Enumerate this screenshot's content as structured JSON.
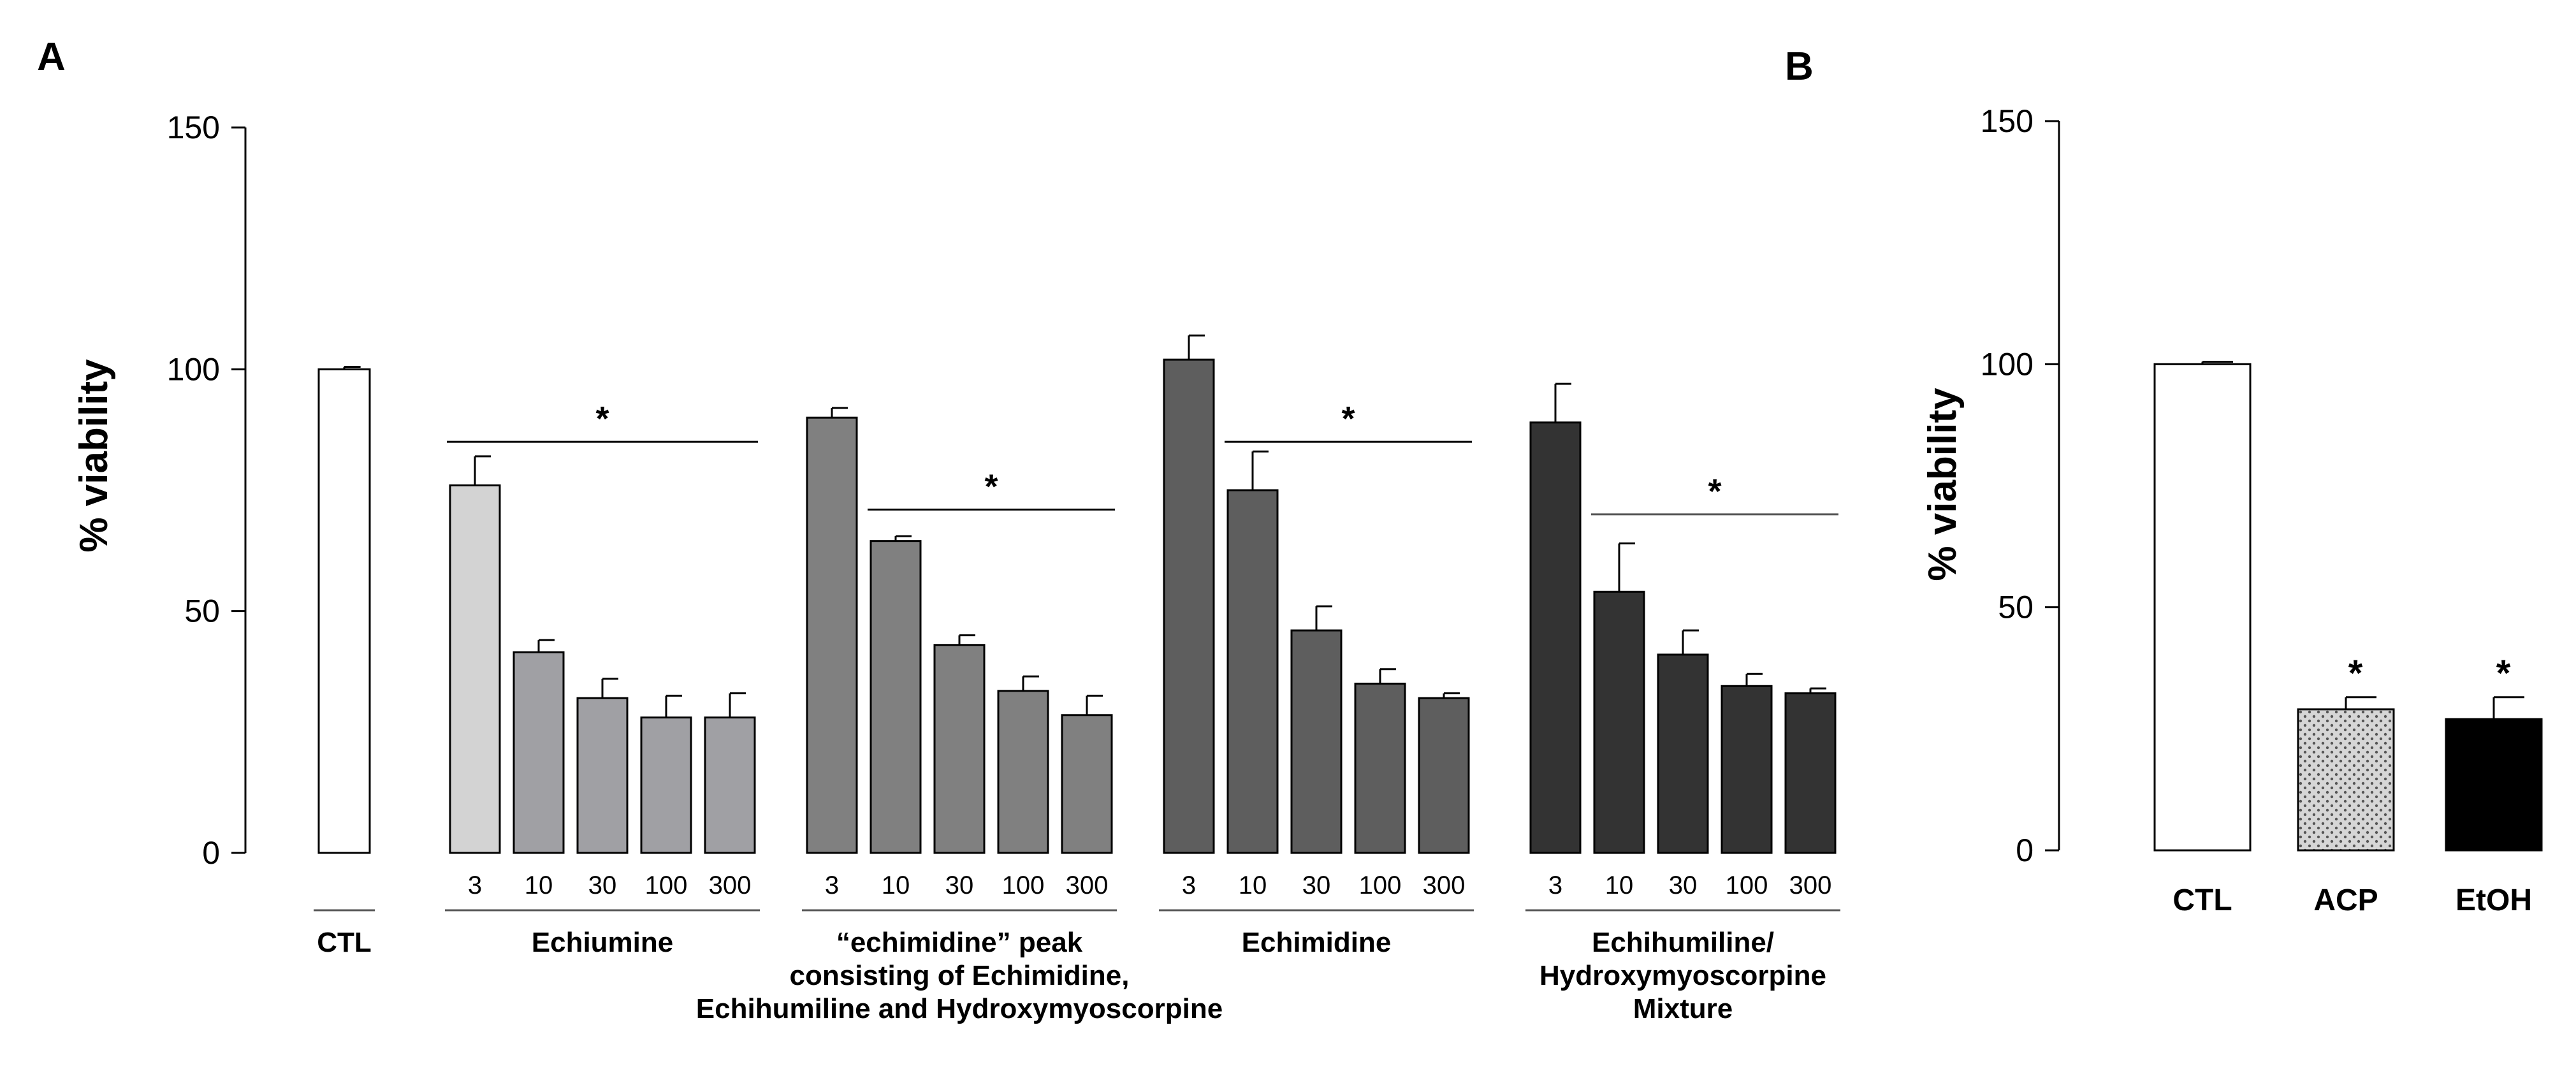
{
  "chart_data": [
    {
      "panel_label": "A",
      "type": "bar",
      "ylabel": "% viability",
      "ylim": [
        0,
        150
      ],
      "yticks": [
        0,
        50,
        100,
        150
      ],
      "groups": [
        {
          "name": "CTL",
          "color": "#ffffff",
          "categories": [
            ""
          ],
          "values": [
            100
          ],
          "errors": [
            0.5
          ],
          "significance": []
        },
        {
          "name": "Echiumine",
          "color": "#d3d3d3",
          "color_rest": "#a0a0a4",
          "categories": [
            "3",
            "10",
            "30",
            "100",
            "300"
          ],
          "values": [
            76,
            41.5,
            32,
            28,
            28
          ],
          "errors": [
            6,
            2.5,
            4,
            4.5,
            5
          ],
          "significance": [
            {
              "from": 0,
              "to": 4,
              "y": 85,
              "label": "*"
            }
          ]
        },
        {
          "name": "“echimidine” peak consisting of Echimidine, Echihumiline and Hydroxymyoscorpine",
          "name_lines": [
            "“echimidine” peak",
            "consisting of Echimidine,",
            "Echihumiline and Hydroxymyoscorpine"
          ],
          "color": "#808080",
          "categories": [
            "3",
            "10",
            "30",
            "100",
            "300"
          ],
          "values": [
            90,
            64.5,
            43,
            33.5,
            28.5
          ],
          "errors": [
            2,
            1,
            2,
            3,
            4
          ],
          "significance": [
            {
              "from": 1,
              "to": 4,
              "y": 71,
              "label": "*"
            }
          ]
        },
        {
          "name": "Echimidine",
          "color": "#5e5e5e",
          "categories": [
            "3",
            "10",
            "30",
            "100",
            "300"
          ],
          "values": [
            102,
            75,
            46,
            35,
            32
          ],
          "errors": [
            5,
            8,
            5,
            3,
            1
          ],
          "significance": [
            {
              "from": 1,
              "to": 4,
              "y": 85,
              "label": "*"
            }
          ]
        },
        {
          "name": "Echihumiline/ Hydroxymyoscorpine Mixture",
          "name_lines": [
            "Echihumiline/",
            "Hydroxymyoscorpine",
            "Mixture"
          ],
          "color": "#333333",
          "categories": [
            "3",
            "10",
            "30",
            "100",
            "300"
          ],
          "values": [
            89,
            54,
            41,
            34.5,
            33
          ],
          "errors": [
            8,
            10,
            5,
            2.5,
            1
          ],
          "significance": [
            {
              "from": 1,
              "to": 4,
              "y": 70,
              "label": "*"
            }
          ]
        }
      ]
    },
    {
      "panel_label": "B",
      "type": "bar",
      "ylabel": "% viability",
      "ylim": [
        0,
        150
      ],
      "yticks": [
        0,
        50,
        100,
        150
      ],
      "categories": [
        "CTL",
        "ACP",
        "EtOH"
      ],
      "values": [
        100,
        29,
        27
      ],
      "errors": [
        0.5,
        2.5,
        4.5
      ],
      "colors": [
        "#ffffff",
        "#d6d6d6",
        "#000000"
      ],
      "patterns": [
        "none",
        "dots",
        "none"
      ],
      "significance": [
        "",
        "*",
        "*"
      ]
    }
  ]
}
